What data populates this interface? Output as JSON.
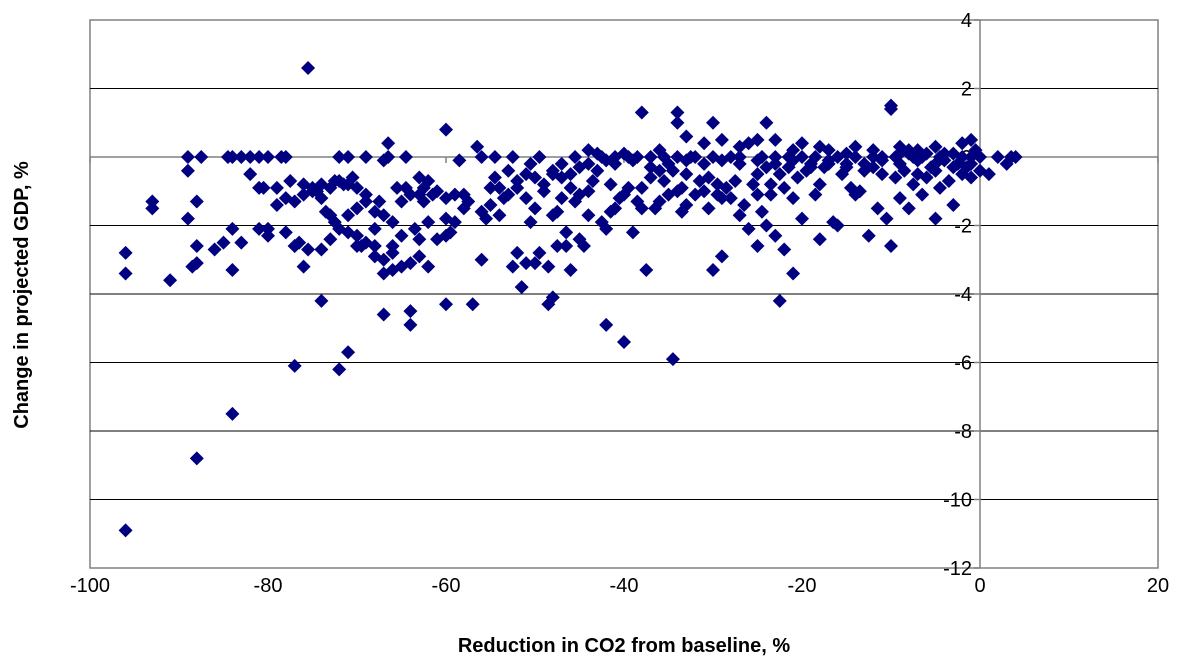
{
  "chart_data": {
    "type": "scatter",
    "xlabel": "Reduction in CO2 from baseline, %",
    "ylabel": "Change in projected GDP, %",
    "xlim": [
      -100,
      20
    ],
    "ylim": [
      -12,
      4
    ],
    "x_ticks": [
      -100,
      -80,
      -60,
      -40,
      -20,
      0,
      20
    ],
    "y_ticks": [
      -12,
      -10,
      -8,
      -6,
      -4,
      -2,
      0,
      2,
      4
    ],
    "x_tick_labels": [
      "-100",
      "-80",
      "-60",
      "-40",
      "-20",
      "0",
      "20"
    ],
    "y_tick_labels": [
      "-12",
      "-10",
      "-8",
      "-6",
      "-4",
      "-2",
      "0",
      "2",
      "4"
    ],
    "grid": "horizontal",
    "marker": "diamond",
    "marker_color": "#000080",
    "points": [
      [
        -96,
        -10.9
      ],
      [
        -96,
        -3.4
      ],
      [
        -96,
        -2.8
      ],
      [
        -93,
        -1.3
      ],
      [
        -93,
        -1.5
      ],
      [
        -91,
        -3.6
      ],
      [
        -89,
        -1.8
      ],
      [
        -89,
        -0.4
      ],
      [
        -89,
        0
      ],
      [
        -88.5,
        -3.2
      ],
      [
        -88,
        -8.8
      ],
      [
        -88,
        -3.1
      ],
      [
        -88,
        -1.3
      ],
      [
        -88,
        -2.6
      ],
      [
        -87.5,
        0
      ],
      [
        -86,
        -2.7
      ],
      [
        -85,
        -2.5
      ],
      [
        -84.5,
        0
      ],
      [
        -84,
        0
      ],
      [
        -84,
        -7.5
      ],
      [
        -84,
        -3.3
      ],
      [
        -84,
        -2.1
      ],
      [
        -83,
        0
      ],
      [
        -83,
        -2.5
      ],
      [
        -82,
        0
      ],
      [
        -81,
        0
      ],
      [
        -81,
        -2.1
      ],
      [
        -80.5,
        -0.9
      ],
      [
        -80,
        0
      ],
      [
        -80,
        -2.1
      ],
      [
        -79,
        -0.9
      ],
      [
        -78.5,
        0
      ],
      [
        -78,
        0
      ],
      [
        -77.5,
        -0.7
      ],
      [
        -77,
        -6.1
      ],
      [
        -77,
        -2.6
      ],
      [
        -76.5,
        -2.5
      ],
      [
        -76,
        -0.8
      ],
      [
        -76,
        -3.2
      ],
      [
        -75.5,
        2.6
      ],
      [
        -75.5,
        -2.7
      ],
      [
        -75,
        -0.9
      ],
      [
        -74.5,
        -1
      ],
      [
        -74,
        -1.2
      ],
      [
        -74,
        -4.2
      ],
      [
        -73.5,
        -1.6
      ],
      [
        -73,
        -1.7
      ],
      [
        -72.5,
        -0.7
      ],
      [
        -72.5,
        -1.9
      ],
      [
        -72,
        -6.2
      ],
      [
        -72,
        0
      ],
      [
        -71.5,
        -0.8
      ],
      [
        -71,
        -5.7
      ],
      [
        -71,
        0
      ],
      [
        -70.5,
        -0.6
      ],
      [
        -70,
        -2.6
      ],
      [
        -69.5,
        -2.6
      ],
      [
        -69,
        0
      ],
      [
        -68,
        -2.6
      ],
      [
        -68,
        -2.1
      ],
      [
        -67.5,
        -1.3
      ],
      [
        -67,
        -0.1
      ],
      [
        -67,
        -1.7
      ],
      [
        -67,
        -4.6
      ],
      [
        -66.5,
        0.4
      ],
      [
        -66.5,
        0
      ],
      [
        -66,
        -2.6
      ],
      [
        -66,
        -1.9
      ],
      [
        -65.5,
        -0.9
      ],
      [
        -65,
        -1.3
      ],
      [
        -65,
        -2.3
      ],
      [
        -64.5,
        -0.9
      ],
      [
        -64.5,
        0
      ],
      [
        -64,
        -4.9
      ],
      [
        -64,
        -4.5
      ],
      [
        -64,
        -1.1
      ],
      [
        -63.5,
        -2.1
      ],
      [
        -63,
        -1.1
      ],
      [
        -63,
        -2.4
      ],
      [
        -62.5,
        -1.3
      ],
      [
        -62.5,
        -0.9
      ],
      [
        -62,
        -1.9
      ],
      [
        -61.5,
        -1.1
      ],
      [
        -60,
        0.8
      ],
      [
        -60,
        -4.3
      ],
      [
        -60,
        -1.8
      ],
      [
        -60,
        -2.3
      ],
      [
        -59.5,
        -2.2
      ],
      [
        -59,
        -1.1
      ],
      [
        -58.5,
        -0.1
      ],
      [
        -58,
        -1.1
      ],
      [
        -57.5,
        -1.3
      ],
      [
        -57,
        -4.3
      ],
      [
        -56.5,
        0.3
      ],
      [
        -56,
        0
      ],
      [
        -56,
        -3
      ],
      [
        -56,
        -1.6
      ],
      [
        -55.5,
        -1.8
      ],
      [
        -55,
        -0.9
      ],
      [
        -54.5,
        0
      ],
      [
        -54.5,
        -0.6
      ],
      [
        -54,
        -1.7
      ],
      [
        -53.5,
        -1.2
      ],
      [
        -53,
        -0.4
      ],
      [
        -52.5,
        0
      ],
      [
        -52.5,
        -3.2
      ],
      [
        -52,
        -0.7
      ],
      [
        -52,
        -2.8
      ],
      [
        -51.5,
        -3.8
      ],
      [
        -51,
        -0.5
      ],
      [
        -51,
        -1.2
      ],
      [
        -51,
        -3.1
      ],
      [
        -50.5,
        -0.2
      ],
      [
        -50.5,
        -1.9
      ],
      [
        -50,
        -1.5
      ],
      [
        -50,
        -3.1
      ],
      [
        -49.5,
        0
      ],
      [
        -49.5,
        -2.8
      ],
      [
        -49,
        -0.8
      ],
      [
        -49,
        -1
      ],
      [
        -48.5,
        -3.2
      ],
      [
        -48.5,
        -4.3
      ],
      [
        -48,
        -0.5
      ],
      [
        -48,
        -4.1
      ],
      [
        -48,
        -1.7
      ],
      [
        -47.5,
        -1.6
      ],
      [
        -47.5,
        -2.6
      ],
      [
        -47,
        -0.2
      ],
      [
        -47,
        -1.2
      ],
      [
        -46.5,
        -2.2
      ],
      [
        -46.5,
        -2.6
      ],
      [
        -46,
        -0.9
      ],
      [
        -46,
        -3.3
      ],
      [
        -45.5,
        0
      ],
      [
        -45.5,
        -1.3
      ],
      [
        -45,
        -1.1
      ],
      [
        -45,
        -2.4
      ],
      [
        -44.5,
        -2.6
      ],
      [
        -44,
        -1
      ],
      [
        -44,
        -1.7
      ],
      [
        -43.5,
        -0.7
      ],
      [
        -43,
        -0.4
      ],
      [
        -42.5,
        0
      ],
      [
        -42.5,
        -1.9
      ],
      [
        -42,
        -2.1
      ],
      [
        -42,
        -4.9
      ],
      [
        -41.5,
        -0.8
      ],
      [
        -41.5,
        -1.6
      ],
      [
        -41,
        0
      ],
      [
        -41,
        -1.5
      ],
      [
        -40.5,
        -1.2
      ],
      [
        -40,
        -5.4
      ],
      [
        -40,
        -1.1
      ],
      [
        -39.5,
        0
      ],
      [
        -39.5,
        -0.9
      ],
      [
        -39,
        -2.2
      ],
      [
        -38.5,
        0
      ],
      [
        -38.5,
        -1.3
      ],
      [
        -38,
        -0.9
      ],
      [
        -38,
        -1.5
      ],
      [
        -37.5,
        -3.3
      ],
      [
        -37,
        0
      ],
      [
        -37,
        -0.6
      ],
      [
        -36.5,
        -1.5
      ],
      [
        -36,
        -1.3
      ],
      [
        -36,
        -0.4
      ],
      [
        -35.5,
        0
      ],
      [
        -35.5,
        -0.7
      ],
      [
        -35,
        -1.1
      ],
      [
        -34.5,
        -5.9
      ],
      [
        -34.5,
        -0.4
      ],
      [
        -34,
        0
      ],
      [
        -34,
        -1
      ],
      [
        -33.5,
        -0.9
      ],
      [
        -33.5,
        -1.6
      ],
      [
        -33,
        -0.5
      ],
      [
        -33,
        -1.4
      ],
      [
        -32.5,
        0
      ],
      [
        -32,
        0
      ],
      [
        -32,
        -1.1
      ],
      [
        -31.5,
        -0.7
      ],
      [
        -31,
        -1
      ],
      [
        -30.5,
        -0.6
      ],
      [
        -30.5,
        -1.5
      ],
      [
        -30,
        0
      ],
      [
        -30,
        -3.3
      ],
      [
        -29.5,
        -0.8
      ],
      [
        -29.5,
        -1.1
      ],
      [
        -29,
        -1.2
      ],
      [
        -29,
        -2.9
      ],
      [
        -28.5,
        -0.9
      ],
      [
        -28,
        0
      ],
      [
        -28,
        -1.2
      ],
      [
        -27.5,
        -0.7
      ],
      [
        -27,
        0
      ],
      [
        -27,
        -1.7
      ],
      [
        -26.5,
        -1.4
      ],
      [
        -26,
        -2.1
      ],
      [
        -25.5,
        -0.8
      ],
      [
        -25,
        -0.5
      ],
      [
        -25,
        -1.1
      ],
      [
        -25,
        -2.6
      ],
      [
        -24.5,
        0
      ],
      [
        -24.5,
        -1.6
      ],
      [
        -24,
        -0.3
      ],
      [
        -24,
        -2
      ],
      [
        -23.5,
        -0.8
      ],
      [
        -23.5,
        -1.1
      ],
      [
        -23,
        0
      ],
      [
        -23,
        -2.3
      ],
      [
        -22.5,
        -0.5
      ],
      [
        -22.5,
        -4.2
      ],
      [
        -22,
        -0.9
      ],
      [
        -22,
        -2.7
      ],
      [
        -21.5,
        0
      ],
      [
        -21.5,
        -0.3
      ],
      [
        -21,
        -1.2
      ],
      [
        -21,
        -3.4
      ],
      [
        -20.5,
        -0.6
      ],
      [
        -20,
        0
      ],
      [
        -20,
        -1.8
      ],
      [
        -19.5,
        -0.4
      ],
      [
        -19,
        -0.2
      ],
      [
        -18.5,
        0
      ],
      [
        -18.5,
        -1.1
      ],
      [
        -18,
        -0.8
      ],
      [
        -18,
        -2.4
      ],
      [
        -17.5,
        -0.3
      ],
      [
        -17,
        -0.1
      ],
      [
        -16.5,
        -1.9
      ],
      [
        -16,
        0
      ],
      [
        -16,
        -2
      ],
      [
        -15.5,
        -0.5
      ],
      [
        -15,
        -0.2
      ],
      [
        -14.5,
        -0.9
      ],
      [
        -14,
        0
      ],
      [
        -14,
        -1.1
      ],
      [
        -13.5,
        -1
      ],
      [
        -13,
        -0.4
      ],
      [
        -12.5,
        -2.3
      ],
      [
        -12,
        0
      ],
      [
        -12,
        -0.3
      ],
      [
        -11.5,
        -1.5
      ],
      [
        -11,
        0
      ],
      [
        -11,
        -0.5
      ],
      [
        -10.5,
        -1.8
      ],
      [
        -10,
        -2.6
      ],
      [
        -9.5,
        0
      ],
      [
        -9.5,
        -0.6
      ],
      [
        -9,
        0.1
      ],
      [
        -9,
        -1.2
      ],
      [
        -8.5,
        -0.4
      ],
      [
        -8,
        0.2
      ],
      [
        -8,
        -1.5
      ],
      [
        -7.5,
        0
      ],
      [
        -7.5,
        -0.8
      ],
      [
        -7,
        -0.5
      ],
      [
        -6.5,
        0
      ],
      [
        -6.5,
        -1.1
      ],
      [
        -6,
        0.1
      ],
      [
        -6,
        -0.6
      ],
      [
        -5.5,
        -0.3
      ],
      [
        -5,
        -0.2
      ],
      [
        -5,
        -1.8
      ],
      [
        -4.5,
        0
      ],
      [
        -4.5,
        -0.9
      ],
      [
        -4,
        -0.1
      ],
      [
        -3.5,
        -0.7
      ],
      [
        -3,
        0.1
      ],
      [
        -3,
        -1.4
      ],
      [
        -2.5,
        -0.2
      ],
      [
        -2,
        0
      ],
      [
        -2,
        -0.5
      ],
      [
        -1.5,
        -0.3
      ],
      [
        -1,
        0
      ],
      [
        -1,
        -0.6
      ],
      [
        -0.5,
        0.2
      ],
      [
        0,
        0
      ],
      [
        0,
        -0.4
      ],
      [
        1,
        -0.5
      ],
      [
        2,
        0
      ],
      [
        3,
        -0.2
      ],
      [
        3.5,
        0
      ],
      [
        4,
        0
      ],
      [
        -38,
        1.3
      ],
      [
        -34,
        1.3
      ],
      [
        -34,
        1
      ],
      [
        -30,
        1
      ],
      [
        -24,
        1
      ],
      [
        -25,
        0.5
      ],
      [
        -29,
        0.5
      ],
      [
        -33,
        0.6
      ],
      [
        -10,
        1.5
      ],
      [
        -10,
        1.4
      ],
      [
        -27,
        0.3
      ],
      [
        -23,
        0.5
      ],
      [
        -20,
        0.4
      ],
      [
        -17,
        0.2
      ],
      [
        -14,
        0.3
      ],
      [
        -12,
        0.2
      ],
      [
        -8,
        0.1
      ],
      [
        -5,
        0.3
      ],
      [
        -2,
        0.4
      ],
      [
        -1,
        0.5
      ],
      [
        -26,
        0.4
      ],
      [
        -21,
        0.2
      ],
      [
        -15,
        0.1
      ],
      [
        -9,
        0.3
      ],
      [
        -7,
        0.2
      ],
      [
        -4,
        0.1
      ],
      [
        -18,
        0.3
      ],
      [
        -31,
        0.4
      ],
      [
        -36,
        0.2
      ],
      [
        -40,
        0.1
      ],
      [
        -43,
        0.1
      ],
      [
        -44,
        0.2
      ],
      [
        -42,
        -0.1
      ],
      [
        -41,
        -0.2
      ],
      [
        -39,
        -0.1
      ],
      [
        -37,
        -0.3
      ],
      [
        -35,
        -0.2
      ],
      [
        -33,
        -0.1
      ],
      [
        -31,
        -0.2
      ],
      [
        -29,
        -0.1
      ],
      [
        -27,
        -0.2
      ],
      [
        -25,
        -0.1
      ],
      [
        -23,
        -0.2
      ],
      [
        -21,
        -0.1
      ],
      [
        -19,
        -0.3
      ],
      [
        -17,
        -0.2
      ],
      [
        -15,
        -0.3
      ],
      [
        -13,
        -0.2
      ],
      [
        -11,
        -0.1
      ],
      [
        -9,
        -0.2
      ],
      [
        -7,
        -0.1
      ],
      [
        -5,
        -0.4
      ],
      [
        -3,
        -0.3
      ],
      [
        -1,
        -0.2
      ],
      [
        -46,
        -0.5
      ],
      [
        -45,
        -0.3
      ],
      [
        -44,
        -0.2
      ],
      [
        -47,
        -0.6
      ],
      [
        -48,
        -0.4
      ],
      [
        -50,
        -0.6
      ],
      [
        -52,
        -0.9
      ],
      [
        -53,
        -1.1
      ],
      [
        -54,
        -0.9
      ],
      [
        -55,
        -1.4
      ],
      [
        -58,
        -1.5
      ],
      [
        -59,
        -1.9
      ],
      [
        -60,
        -1.2
      ],
      [
        -61,
        -1
      ],
      [
        -62,
        -0.7
      ],
      [
        -63,
        -0.6
      ],
      [
        -61,
        -2.4
      ],
      [
        -62,
        -3.2
      ],
      [
        -63,
        -2.9
      ],
      [
        -64,
        -3.1
      ],
      [
        -65,
        -3.2
      ],
      [
        -66,
        -3.3
      ],
      [
        -67,
        -3
      ],
      [
        -68,
        -1.6
      ],
      [
        -69,
        -1.1
      ],
      [
        -70,
        -0.9
      ],
      [
        -71,
        -0.8
      ],
      [
        -72,
        -0.7
      ],
      [
        -73,
        -0.9
      ],
      [
        -74,
        -0.8
      ],
      [
        -75,
        -1
      ],
      [
        -76,
        -1.1
      ],
      [
        -77,
        -1.3
      ],
      [
        -78,
        -1.2
      ],
      [
        -79,
        -1.4
      ],
      [
        -74,
        -2.7
      ],
      [
        -73,
        -2.4
      ],
      [
        -72,
        -2.1
      ],
      [
        -71,
        -2.2
      ],
      [
        -70,
        -2.3
      ],
      [
        -69,
        -2.5
      ],
      [
        -68,
        -2.9
      ],
      [
        -67,
        -3.4
      ],
      [
        -66,
        -2.8
      ],
      [
        -78,
        -2.2
      ],
      [
        -77,
        -2.6
      ],
      [
        -80,
        -2.3
      ],
      [
        -81,
        -0.9
      ],
      [
        -82,
        -0.5
      ],
      [
        -70,
        -1.5
      ],
      [
        -69,
        -1.3
      ],
      [
        -71,
        -1.7
      ]
    ]
  }
}
